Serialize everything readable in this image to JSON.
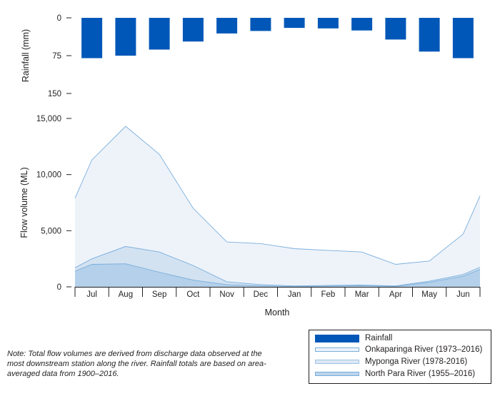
{
  "chart_data": {
    "type": "area",
    "months": [
      "Jul",
      "Aug",
      "Sep",
      "Oct",
      "Nov",
      "Dec",
      "Jan",
      "Feb",
      "Mar",
      "Apr",
      "May",
      "Jun"
    ],
    "rainfall": {
      "name": "Rainfall",
      "type": "bar",
      "color": "#0057b8",
      "values": [
        80,
        75,
        63,
        47,
        31,
        26,
        20,
        21,
        25,
        43,
        67,
        80
      ],
      "ylabel": "Rainfall (mm)",
      "ylim": [
        0,
        150
      ],
      "yticks": [
        0,
        75,
        150
      ],
      "inverted": true
    },
    "flow": {
      "ylabel": "Flow volume (ML)",
      "ylim": [
        0,
        15000
      ],
      "yticks": [
        0,
        5000,
        10000,
        15000
      ],
      "ytick_labels": [
        "0",
        "5,000",
        "10,000",
        "15,000"
      ],
      "xlabel": "Month",
      "x_positions": [
        "start",
        "Jul",
        "Aug",
        "Sep",
        "Oct",
        "Nov",
        "Dec",
        "Jan",
        "Feb",
        "Mar",
        "Apr",
        "May",
        "Jun",
        "end"
      ],
      "series": [
        {
          "name": "Onkaparinga River (1973–2016)",
          "fill": "#eef3fa",
          "stroke": "#79aedc",
          "values": [
            7900,
            11300,
            14300,
            11800,
            7000,
            4000,
            3850,
            3400,
            3250,
            3100,
            2000,
            2300,
            4700,
            8100
          ]
        },
        {
          "name": "Myponga River (1978-2016)",
          "fill": "#c9dcee",
          "stroke": "#79aedc",
          "values": [
            1700,
            2500,
            3600,
            3100,
            1900,
            450,
            200,
            80,
            120,
            160,
            80,
            500,
            1100,
            1750
          ]
        },
        {
          "name": "North Para River (1955–2016)",
          "fill": "#a9c9e7",
          "stroke": "#79aedc",
          "values": [
            1400,
            2000,
            2050,
            1300,
            600,
            200,
            80,
            20,
            60,
            100,
            40,
            400,
            950,
            1550
          ]
        }
      ]
    }
  },
  "note": "Note: Total flow volumes are derived from discharge data observed at the most downstream station along the river. Rainfall totals are based on area-averaged data from 1900–2016."
}
